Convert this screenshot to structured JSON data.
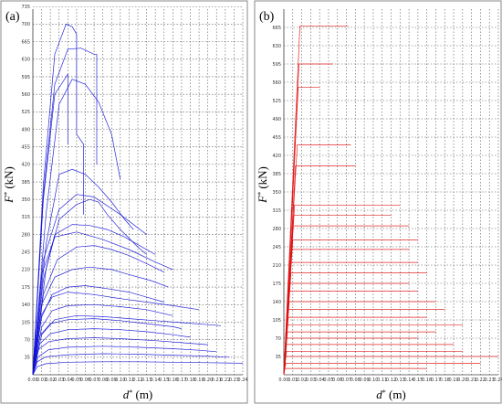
{
  "chart_data": [
    {
      "type": "line",
      "panel_label": "(a)",
      "ylabel": "F* (kN)",
      "ylabel_main": "F",
      "ylabel_sup": "*",
      "ylabel_unit": "(kN)",
      "xlabel": "d* (m)",
      "xlabel_main": "d",
      "xlabel_sup": "*",
      "xlabel_unit": "(m)",
      "xlim": [
        0,
        0.24
      ],
      "ylim": [
        0,
        730
      ],
      "xticks": [
        "0.00",
        "0.01",
        "0.02",
        "0.03",
        "0.04",
        "0.05",
        "0.06",
        "0.07",
        "0.08",
        "0.09",
        "0.10",
        "0.11",
        "0.12",
        "0.13",
        "0.14",
        "0.15",
        "0.16",
        "0.17",
        "0.18",
        "0.19",
        "0.20",
        "0.21",
        "0.22",
        "0.23",
        "0.24"
      ],
      "yticks": [
        35,
        70,
        105,
        140,
        175,
        210,
        245,
        280,
        315,
        350,
        385,
        420,
        455,
        490,
        525,
        560,
        595,
        630,
        665,
        700,
        735
      ],
      "grid": true,
      "color": "#1010d8",
      "series": [
        {
          "x": [
            0,
            0.012,
            0.025,
            0.038,
            0.045,
            0.05,
            0.05,
            0.058,
            0.058
          ],
          "values": [
            0,
            380,
            640,
            700,
            695,
            680,
            480,
            460,
            320
          ]
        },
        {
          "x": [
            0,
            0.012,
            0.025,
            0.04,
            0.055,
            0.07,
            0.073,
            0.073
          ],
          "values": [
            0,
            360,
            580,
            650,
            652,
            640,
            640,
            420
          ]
        },
        {
          "x": [
            0,
            0.015,
            0.03,
            0.045,
            0.06,
            0.075,
            0.09,
            0.1
          ],
          "values": [
            0,
            320,
            540,
            590,
            580,
            545,
            480,
            390
          ]
        },
        {
          "x": [
            0,
            0.012,
            0.025,
            0.04,
            0.04
          ],
          "values": [
            0,
            350,
            560,
            600,
            460
          ]
        },
        {
          "x": [
            0,
            0.015,
            0.03,
            0.045,
            0.06,
            0.075,
            0.09,
            0.105,
            0.115
          ],
          "values": [
            0,
            260,
            400,
            410,
            400,
            375,
            345,
            310,
            290
          ]
        },
        {
          "x": [
            0,
            0.015,
            0.03,
            0.05,
            0.065,
            0.075,
            0.085,
            0.1,
            0.12,
            0.13
          ],
          "values": [
            0,
            210,
            310,
            340,
            350,
            345,
            320,
            290,
            255,
            240
          ]
        },
        {
          "x": [
            0,
            0.012,
            0.025,
            0.045,
            0.065,
            0.085,
            0.105,
            0.125,
            0.14
          ],
          "values": [
            0,
            190,
            280,
            300,
            298,
            290,
            275,
            255,
            240
          ]
        },
        {
          "x": [
            0,
            0.012,
            0.028,
            0.05,
            0.07,
            0.09,
            0.11,
            0.13,
            0.15
          ],
          "values": [
            0,
            160,
            230,
            255,
            258,
            250,
            238,
            222,
            205
          ]
        },
        {
          "x": [
            0,
            0.01,
            0.025,
            0.045,
            0.065,
            0.09,
            0.11,
            0.135,
            0.155
          ],
          "values": [
            0,
            140,
            195,
            210,
            215,
            210,
            200,
            188,
            175
          ]
        },
        {
          "x": [
            0,
            0.01,
            0.022,
            0.04,
            0.06,
            0.085,
            0.11,
            0.13,
            0.15
          ],
          "values": [
            0,
            115,
            160,
            175,
            178,
            172,
            165,
            155,
            145
          ]
        },
        {
          "x": [
            0,
            0.01,
            0.022,
            0.04,
            0.07,
            0.1,
            0.13,
            0.15,
            0.16
          ],
          "values": [
            0,
            95,
            128,
            138,
            140,
            136,
            130,
            122,
            118
          ]
        },
        {
          "x": [
            0,
            0.008,
            0.02,
            0.04,
            0.07,
            0.1,
            0.13,
            0.16,
            0.17
          ],
          "values": [
            0,
            78,
            102,
            110,
            112,
            108,
            102,
            96,
            92
          ]
        },
        {
          "x": [
            0,
            0.008,
            0.02,
            0.04,
            0.07,
            0.1,
            0.13,
            0.16,
            0.18
          ],
          "values": [
            0,
            62,
            82,
            90,
            92,
            90,
            86,
            80,
            75
          ]
        },
        {
          "x": [
            0,
            0.006,
            0.018,
            0.04,
            0.07,
            0.1,
            0.14,
            0.17,
            0.2
          ],
          "values": [
            0,
            50,
            66,
            72,
            74,
            72,
            68,
            64,
            60
          ]
        },
        {
          "x": [
            0,
            0.006,
            0.018,
            0.04,
            0.08,
            0.12,
            0.16,
            0.19,
            0.21
          ],
          "values": [
            0,
            36,
            50,
            55,
            57,
            55,
            52,
            49,
            46
          ]
        },
        {
          "x": [
            0,
            0.005,
            0.015,
            0.04,
            0.08,
            0.12,
            0.16,
            0.2,
            0.225
          ],
          "values": [
            0,
            26,
            36,
            40,
            42,
            41,
            39,
            37,
            35
          ]
        },
        {
          "x": [
            0,
            0.005,
            0.015,
            0.04,
            0.08,
            0.12,
            0.16,
            0.2,
            0.24
          ],
          "values": [
            0,
            16,
            22,
            25,
            26,
            26,
            25,
            24,
            23
          ]
        },
        {
          "x": [
            0,
            0.01,
            0.025,
            0.05,
            0.08,
            0.11,
            0.14,
            0.16
          ],
          "values": [
            0,
            200,
            275,
            285,
            270,
            250,
            225,
            210
          ]
        },
        {
          "x": [
            0,
            0.012,
            0.03,
            0.05,
            0.07,
            0.1,
            0.13
          ],
          "values": [
            0,
            230,
            330,
            360,
            355,
            320,
            280
          ]
        },
        {
          "x": [
            0,
            0.01,
            0.022,
            0.04,
            0.07,
            0.1,
            0.13,
            0.16,
            0.19
          ],
          "values": [
            0,
            120,
            155,
            165,
            160,
            152,
            145,
            138,
            130
          ]
        },
        {
          "x": [
            0,
            0.01,
            0.025,
            0.05,
            0.08,
            0.11,
            0.14,
            0.17,
            0.2,
            0.215
          ],
          "values": [
            0,
            80,
            110,
            118,
            116,
            112,
            108,
            104,
            100,
            98
          ]
        }
      ]
    },
    {
      "type": "line",
      "panel_label": "(b)",
      "ylabel": "F* (kN)",
      "ylabel_main": "F",
      "ylabel_sup": "*",
      "ylabel_unit": "(kN)",
      "xlabel": "d* (m)",
      "xlabel_main": "d",
      "xlabel_sup": "*",
      "xlabel_unit": "(m)",
      "xlim": [
        0,
        0.24
      ],
      "ylim": [
        0,
        700
      ],
      "xticks": [
        "0.00",
        "0.01",
        "0.02",
        "0.03",
        "0.04",
        "0.05",
        "0.06",
        "0.07",
        "0.08",
        "0.09",
        "0.10",
        "0.11",
        "0.12",
        "0.13",
        "0.14",
        "0.15",
        "0.16",
        "0.17",
        "0.18",
        "0.19",
        "0.20",
        "0.21",
        "0.22",
        "0.23",
        "0.24"
      ],
      "yticks": [
        35,
        70,
        105,
        140,
        175,
        210,
        245,
        280,
        315,
        350,
        385,
        420,
        455,
        490,
        525,
        560,
        595,
        630,
        665
      ],
      "grid": true,
      "color": "#e01010",
      "series": [
        {
          "x": [
            0,
            0.018,
            0.072
          ],
          "values": [
            0,
            668,
            668
          ]
        },
        {
          "x": [
            0,
            0.017,
            0.055
          ],
          "values": [
            0,
            595,
            595
          ]
        },
        {
          "x": [
            0,
            0.016,
            0.04
          ],
          "values": [
            0,
            550,
            550
          ]
        },
        {
          "x": [
            0,
            0.015,
            0.075
          ],
          "values": [
            0,
            440,
            440
          ]
        },
        {
          "x": [
            0,
            0.013,
            0.08
          ],
          "values": [
            0,
            400,
            400
          ]
        },
        {
          "x": [
            0,
            0.012,
            0.13
          ],
          "values": [
            0,
            325,
            325
          ]
        },
        {
          "x": [
            0,
            0.011,
            0.12
          ],
          "values": [
            0,
            305,
            305
          ]
        },
        {
          "x": [
            0,
            0.01,
            0.14
          ],
          "values": [
            0,
            285,
            285
          ]
        },
        {
          "x": [
            0,
            0.01,
            0.15
          ],
          "values": [
            0,
            258,
            258
          ]
        },
        {
          "x": [
            0,
            0.009,
            0.14
          ],
          "values": [
            0,
            240,
            240
          ]
        },
        {
          "x": [
            0,
            0.008,
            0.15
          ],
          "values": [
            0,
            215,
            215
          ]
        },
        {
          "x": [
            0,
            0.008,
            0.16
          ],
          "values": [
            0,
            195,
            195
          ]
        },
        {
          "x": [
            0,
            0.007,
            0.14
          ],
          "values": [
            0,
            175,
            175
          ]
        },
        {
          "x": [
            0,
            0.006,
            0.15
          ],
          "values": [
            0,
            160,
            160
          ]
        },
        {
          "x": [
            0,
            0.006,
            0.17
          ],
          "values": [
            0,
            140,
            140
          ]
        },
        {
          "x": [
            0,
            0.005,
            0.18
          ],
          "values": [
            0,
            125,
            125
          ]
        },
        {
          "x": [
            0,
            0.005,
            0.16
          ],
          "values": [
            0,
            110,
            110
          ]
        },
        {
          "x": [
            0,
            0.004,
            0.2
          ],
          "values": [
            0,
            95,
            95
          ]
        },
        {
          "x": [
            0,
            0.004,
            0.17
          ],
          "values": [
            0,
            82,
            82
          ]
        },
        {
          "x": [
            0,
            0.003,
            0.15
          ],
          "values": [
            0,
            70,
            70
          ]
        },
        {
          "x": [
            0,
            0.003,
            0.19
          ],
          "values": [
            0,
            58,
            58
          ]
        },
        {
          "x": [
            0,
            0.003,
            0.2
          ],
          "values": [
            0,
            45,
            45
          ]
        },
        {
          "x": [
            0,
            0.002,
            0.24
          ],
          "values": [
            0,
            35,
            35
          ]
        },
        {
          "x": [
            0,
            0.002,
            0.22
          ],
          "values": [
            0,
            22,
            22
          ]
        },
        {
          "x": [
            0,
            0.001,
            0.16
          ],
          "values": [
            0,
            12,
            12
          ]
        }
      ]
    }
  ]
}
